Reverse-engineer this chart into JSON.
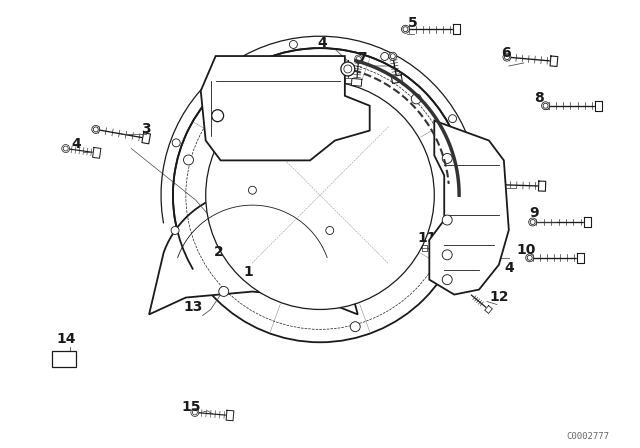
{
  "bg_color": "#ffffff",
  "line_color": "#1a1a1a",
  "fig_width": 6.4,
  "fig_height": 4.48,
  "dpi": 100,
  "watermark": "C0002777",
  "label_fontsize": 8.5,
  "label_fontsize_large": 10
}
